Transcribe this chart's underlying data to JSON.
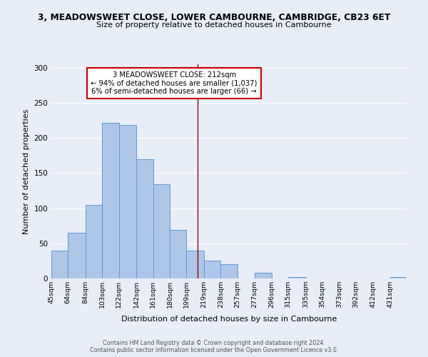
{
  "title_line1": "3, MEADOWSWEET CLOSE, LOWER CAMBOURNE, CAMBRIDGE, CB23 6ET",
  "title_line2": "Size of property relative to detached houses in Cambourne",
  "xlabel": "Distribution of detached houses by size in Cambourne",
  "ylabel": "Number of detached properties",
  "bin_labels": [
    "45sqm",
    "64sqm",
    "84sqm",
    "103sqm",
    "122sqm",
    "142sqm",
    "161sqm",
    "180sqm",
    "199sqm",
    "219sqm",
    "238sqm",
    "257sqm",
    "277sqm",
    "296sqm",
    "315sqm",
    "335sqm",
    "354sqm",
    "373sqm",
    "392sqm",
    "412sqm",
    "431sqm"
  ],
  "bar_values": [
    40,
    65,
    105,
    222,
    219,
    170,
    134,
    69,
    40,
    25,
    20,
    0,
    8,
    0,
    2,
    0,
    0,
    0,
    0,
    0,
    2
  ],
  "bar_color": "#aec6e8",
  "bar_edge_color": "#5b9bd5",
  "vline_x": 212,
  "vline_color": "#990000",
  "annotation_title": "3 MEADOWSWEET CLOSE: 212sqm",
  "annotation_line1": "← 94% of detached houses are smaller (1,037)",
  "annotation_line2": "6% of semi-detached houses are larger (66) →",
  "annotation_box_edge": "#cc0000",
  "ylim": [
    0,
    305
  ],
  "yticks": [
    0,
    50,
    100,
    150,
    200,
    250,
    300
  ],
  "bin_edges": [
    45,
    64,
    84,
    103,
    122,
    142,
    161,
    180,
    199,
    219,
    238,
    257,
    277,
    296,
    315,
    335,
    354,
    373,
    392,
    412,
    431,
    450
  ],
  "footer_line1": "Contains HM Land Registry data © Crown copyright and database right 2024.",
  "footer_line2": "Contains public sector information licensed under the Open Government Licence v3.0.",
  "bg_color": "#e8eef8",
  "plot_bg_color": "#e8eef8"
}
